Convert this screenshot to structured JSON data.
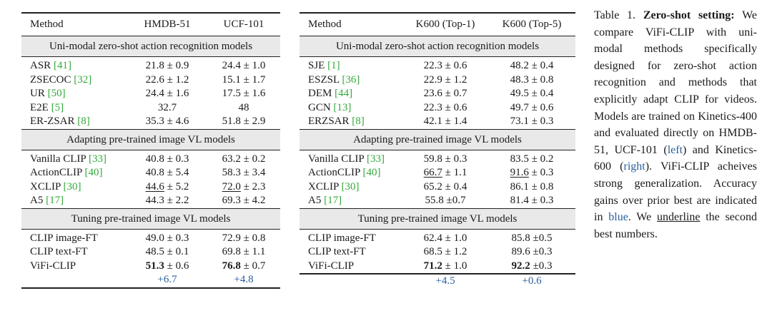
{
  "left_table": {
    "headers": [
      "Method",
      "HMDB-51",
      "UCF-101"
    ],
    "sections": [
      {
        "title": "Uni-modal zero-shot action recognition models",
        "rows": [
          {
            "name": "ASR",
            "ref": "41",
            "v1": "21.8 ± 0.9",
            "v2": "24.4 ± 1.0"
          },
          {
            "name": "ZSECOC",
            "ref": "32",
            "v1": "22.6 ± 1.2",
            "v2": "15.1 ± 1.7"
          },
          {
            "name": "UR",
            "ref": "50",
            "v1": "24.4 ± 1.6",
            "v2": "17.5 ± 1.6"
          },
          {
            "name": "E2E",
            "ref": "5",
            "v1": "32.7",
            "v2": "48"
          },
          {
            "name": "ER-ZSAR",
            "ref": "8",
            "v1": "35.3 ± 4.6",
            "v2": "51.8 ± 2.9"
          }
        ]
      },
      {
        "title": "Adapting pre-trained image VL models",
        "rows": [
          {
            "name": "Vanilla CLIP",
            "ref": "33",
            "v1": "40.8 ± 0.3",
            "v2": "63.2 ± 0.2"
          },
          {
            "name": "ActionCLIP",
            "ref": "40",
            "v1": "40.8 ± 5.4",
            "v2": "58.3 ± 3.4"
          },
          {
            "name": "XCLIP",
            "ref": "30",
            "v1a": "44.6",
            "v1b": " ± 5.2",
            "v2a": "72.0",
            "v2b": " ± 2.3"
          },
          {
            "name": "A5",
            "ref": "17",
            "v1": "44.3 ± 2.2",
            "v2": "69.3 ± 4.2"
          }
        ]
      },
      {
        "title": "Tuning pre-trained image VL models",
        "rows": [
          {
            "name": "CLIP image-FT",
            "v1": "49.0 ± 0.3",
            "v2": "72.9 ± 0.8"
          },
          {
            "name": "CLIP text-FT",
            "v1": "48.5 ± 0.1",
            "v2": "69.8 ± 1.1"
          },
          {
            "name": "ViFi-CLIP",
            "v1a": "51.3",
            "v1b": " ± 0.6",
            "v2a": "76.8",
            "v2b": " ± 0.7"
          }
        ],
        "gains": [
          "+6.7",
          "+4.8"
        ]
      }
    ]
  },
  "right_table": {
    "headers": [
      "Method",
      "K600 (Top-1)",
      "K600 (Top-5)"
    ],
    "sections": [
      {
        "title": "Uni-modal zero-shot action recognition models",
        "rows": [
          {
            "name": "SJE",
            "ref": "1",
            "v1": "22.3 ± 0.6",
            "v2": "48.2 ± 0.4"
          },
          {
            "name": "ESZSL",
            "ref": "36",
            "v1": "22.9 ± 1.2",
            "v2": "48.3 ± 0.8"
          },
          {
            "name": "DEM",
            "ref": "44",
            "v1": "23.6 ± 0.7",
            "v2": "49.5 ± 0.4"
          },
          {
            "name": "GCN",
            "ref": "13",
            "v1": "22.3 ± 0.6",
            "v2": "49.7 ± 0.6"
          },
          {
            "name": "ERZSAR",
            "ref": "8",
            "v1": "42.1 ± 1.4",
            "v2": "73.1 ± 0.3"
          }
        ]
      },
      {
        "title": "Adapting pre-trained image VL models",
        "rows": [
          {
            "name": "Vanilla CLIP",
            "ref": "33",
            "v1": "59.8 ± 0.3",
            "v2": "83.5 ± 0.2"
          },
          {
            "name": "ActionCLIP",
            "ref": "40",
            "v1a": "66.7",
            "v1b": " ± 1.1",
            "v2a": "91.6",
            "v2b": " ± 0.3"
          },
          {
            "name": "XCLIP",
            "ref": "30",
            "v1": "65.2 ± 0.4",
            "v2": "86.1 ± 0.8"
          },
          {
            "name": "A5",
            "ref": "17",
            "v1": "55.8 ±0.7",
            "v2": "81.4 ± 0.3"
          }
        ]
      },
      {
        "title": "Tuning pre-trained image VL models",
        "rows": [
          {
            "name": "CLIP image-FT",
            "v1": "62.4 ± 1.0",
            "v2": "85.8 ±0.5"
          },
          {
            "name": "CLIP text-FT",
            "v1": "68.5 ± 1.2",
            "v2": "89.6 ±0.3"
          },
          {
            "name": "ViFi-CLIP",
            "v1a": "71.2",
            "v1b": " ± 1.0",
            "v2a": "92.2",
            "v2b": " ±0.3"
          }
        ],
        "gains": [
          "+4.5",
          "+0.6"
        ]
      }
    ]
  },
  "caption": {
    "label": "Table 1.",
    "title": "Zero-shot setting:",
    "text1": "We compare ViFi-CLIP with uni-modal methods specifically designed for zero-shot action recognition and methods that explicitly adapt CLIP for videos. Models are trained on Kinetics-400 and evaluated directly on HMDB-51, UCF-101 (",
    "left": "left",
    "text2": ") and Kinetics-600 (",
    "right": "right",
    "text3": "). ViFi-CLIP acheives strong generalization. Accuracy gains over prior best are indicated in ",
    "blue": "blue",
    "text4": ". We ",
    "underline": "underline",
    "text5": " the second best numbers."
  },
  "colors": {
    "gain": "#2a5f9e",
    "ref": "#34a83a",
    "section_bg": "#e9e9e9"
  }
}
